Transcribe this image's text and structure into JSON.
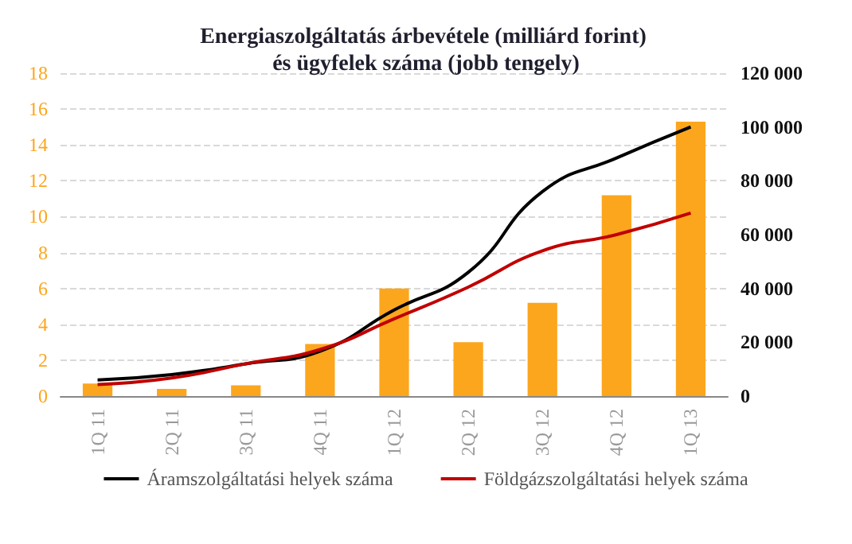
{
  "chart_data": {
    "type": "bar",
    "title": "Energiaszolgáltatás árbevétele (milliárd forint) és ügyfelek száma (jobb tengely)",
    "categories": [
      "1Q 11",
      "2Q 11",
      "3Q 11",
      "4Q 11",
      "1Q 12",
      "2Q 12",
      "3Q 12",
      "4Q 12",
      "1Q 13"
    ],
    "series": [
      {
        "color": "#fca61e",
        "values": [
          0.7,
          0.4,
          0.6,
          2.9,
          6.0,
          3.0,
          5.2,
          11.2,
          15.3
        ]
      },
      {
        "type": "line",
        "axis": "y2",
        "name": "Áramszolgáltatási helyek száma",
        "color": "#000000",
        "values": [
          6000,
          8000,
          12000,
          16700,
          32000,
          46000,
          76000,
          88500,
          100000
        ]
      },
      {
        "type": "line",
        "axis": "y2",
        "name": "Földgázszolgáltatási helyek száma",
        "color": "#c00000",
        "values": [
          4300,
          6700,
          12000,
          17300,
          28700,
          40500,
          54000,
          60000,
          68000
        ]
      }
    ],
    "ylim": [
      0,
      18
    ],
    "yticks": [
      0,
      2,
      4,
      6,
      8,
      10,
      12,
      14,
      16,
      18
    ],
    "y2lim": [
      0,
      120000
    ],
    "y2ticks": [
      0,
      {
        "value": 20000,
        "label": "20 000"
      },
      {
        "value": 40000,
        "label": "40 000"
      },
      {
        "value": 60000,
        "label": "60 000"
      },
      {
        "value": 80000,
        "label": "80 000"
      },
      {
        "value": 100000,
        "label": "100 000"
      },
      {
        "value": 120000,
        "label": "120 000"
      }
    ],
    "grid": "y",
    "legend": "bottom",
    "marker": "none",
    "line_style": "solid"
  }
}
